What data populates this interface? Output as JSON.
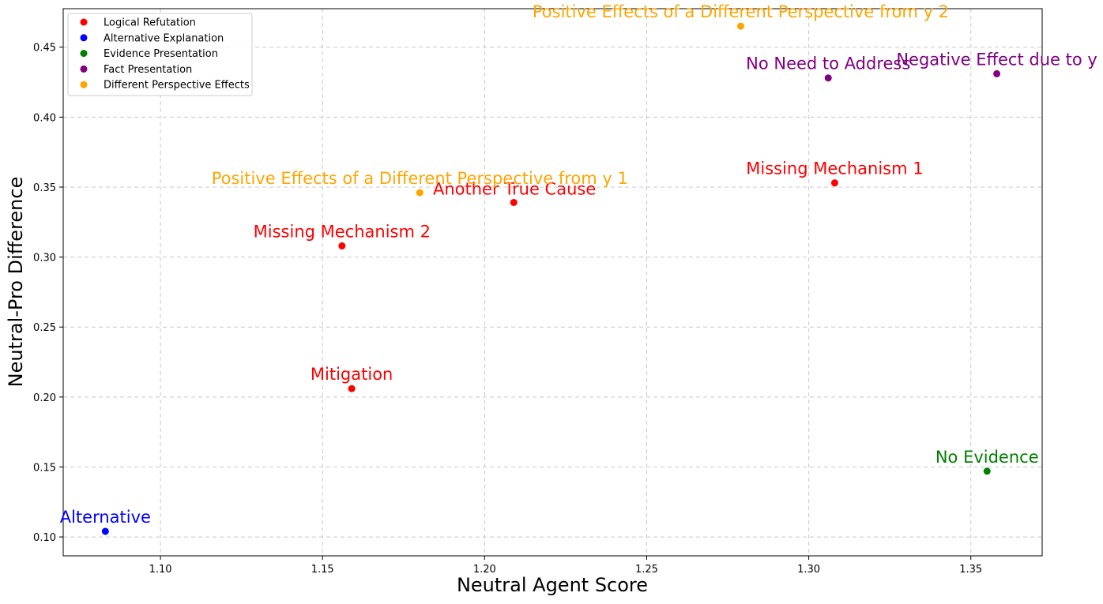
{
  "chart_data": {
    "type": "scatter",
    "title": "",
    "xlabel": "Neutral Agent Score",
    "ylabel": "Neutral-Pro Difference",
    "xlim": [
      1.07,
      1.372
    ],
    "ylim": [
      0.0865,
      0.4775
    ],
    "xticks": [
      1.1,
      1.15,
      1.2,
      1.25,
      1.3,
      1.35
    ],
    "yticks": [
      0.1,
      0.15,
      0.2,
      0.25,
      0.3,
      0.35,
      0.4,
      0.45
    ],
    "grid": true,
    "legend_position": "top-left",
    "legend": [
      {
        "name": "Logical Refutation",
        "color": "#ff0000"
      },
      {
        "name": "Alternative Explanation",
        "color": "#0000ff"
      },
      {
        "name": "Evidence Presentation",
        "color": "#008000"
      },
      {
        "name": "Fact Presentation",
        "color": "#800080"
      },
      {
        "name": "Different Perspective Effects",
        "color": "#ffa500"
      }
    ],
    "points": [
      {
        "label": "Missing Mechanism 1",
        "x": 1.308,
        "y": 0.353,
        "series": "Logical Refutation",
        "color": "#ff0000"
      },
      {
        "label": "Another True Cause",
        "x": 1.209,
        "y": 0.339,
        "series": "Logical Refutation",
        "color": "#ff0000"
      },
      {
        "label": "Missing Mechanism 2",
        "x": 1.156,
        "y": 0.308,
        "series": "Logical Refutation",
        "color": "#ff0000"
      },
      {
        "label": "Mitigation",
        "x": 1.159,
        "y": 0.206,
        "series": "Logical Refutation",
        "color": "#ff0000"
      },
      {
        "label": "Alternative",
        "x": 1.083,
        "y": 0.104,
        "series": "Alternative Explanation",
        "color": "#0000ff"
      },
      {
        "label": "No Evidence",
        "x": 1.355,
        "y": 0.147,
        "series": "Evidence Presentation",
        "color": "#008000"
      },
      {
        "label": "No Need to Address",
        "x": 1.306,
        "y": 0.428,
        "series": "Fact Presentation",
        "color": "#800080"
      },
      {
        "label": "Negative Effect due to y",
        "x": 1.358,
        "y": 0.431,
        "series": "Fact Presentation",
        "color": "#800080"
      },
      {
        "label": "Positive Effects of a Different Perspective from y 2",
        "x": 1.279,
        "y": 0.465,
        "series": "Different Perspective Effects",
        "color": "#ffa500"
      },
      {
        "label": "Positive Effects of a Different Perspective from y 1",
        "x": 1.18,
        "y": 0.346,
        "series": "Different Perspective Effects",
        "color": "#ffa500"
      }
    ]
  }
}
